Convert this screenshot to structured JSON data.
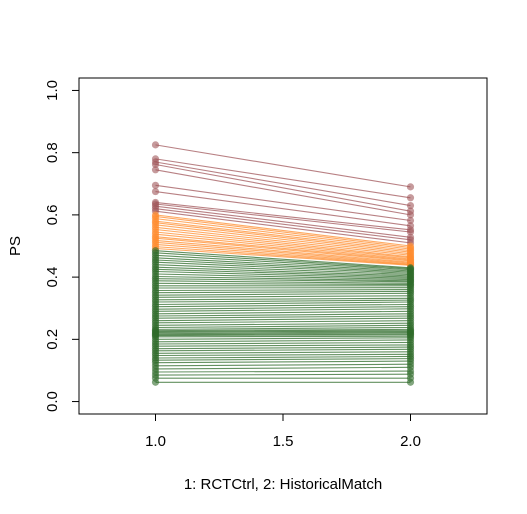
{
  "chart_data": {
    "type": "line",
    "title": "",
    "xlabel": "1: RCTCtrl, 2: HistoricalMatch",
    "ylabel": "PS",
    "xlim": [
      0.7,
      2.3
    ],
    "ylim": [
      -0.04,
      1.04
    ],
    "x_ticks": [
      "1.0",
      "1.5",
      "2.0"
    ],
    "y_ticks": [
      "0.0",
      "0.2",
      "0.4",
      "0.6",
      "0.8",
      "1.0"
    ],
    "x_tick_values": [
      1.0,
      1.5,
      2.0
    ],
    "y_tick_values": [
      0.0,
      0.2,
      0.4,
      0.6,
      0.8,
      1.0
    ],
    "grid": false,
    "legend": "none",
    "x": [
      1,
      2
    ],
    "groups": [
      {
        "color": "#a0565a",
        "pairs": [
          [
            0.825,
            0.69
          ],
          [
            0.78,
            0.655
          ],
          [
            0.77,
            0.63
          ],
          [
            0.762,
            0.612
          ],
          [
            0.745,
            0.6
          ],
          [
            0.695,
            0.582
          ],
          [
            0.675,
            0.565
          ],
          [
            0.64,
            0.552
          ],
          [
            0.635,
            0.545
          ],
          [
            0.628,
            0.528
          ],
          [
            0.62,
            0.52
          ],
          [
            0.612,
            0.51
          ]
        ]
      },
      {
        "color": "#ff8c2e",
        "pairs": [
          [
            0.6,
            0.5
          ],
          [
            0.595,
            0.495
          ],
          [
            0.588,
            0.49
          ],
          [
            0.58,
            0.485
          ],
          [
            0.575,
            0.48
          ],
          [
            0.568,
            0.475
          ],
          [
            0.56,
            0.47
          ],
          [
            0.553,
            0.465
          ],
          [
            0.545,
            0.462
          ],
          [
            0.538,
            0.458
          ],
          [
            0.53,
            0.455
          ],
          [
            0.525,
            0.452
          ],
          [
            0.518,
            0.448
          ],
          [
            0.512,
            0.445
          ],
          [
            0.505,
            0.442
          ],
          [
            0.498,
            0.44
          ],
          [
            0.492,
            0.438
          ]
        ]
      },
      {
        "color": "#2e6b2a",
        "pairs": [
          [
            0.485,
            0.43
          ],
          [
            0.478,
            0.427
          ],
          [
            0.47,
            0.424
          ],
          [
            0.462,
            0.42
          ],
          [
            0.455,
            0.416
          ],
          [
            0.448,
            0.412
          ],
          [
            0.44,
            0.408
          ],
          [
            0.432,
            0.404
          ],
          [
            0.425,
            0.4
          ],
          [
            0.418,
            0.396
          ],
          [
            0.41,
            0.392
          ],
          [
            0.402,
            0.388
          ],
          [
            0.395,
            0.385
          ],
          [
            0.388,
            0.38
          ],
          [
            0.38,
            0.376
          ],
          [
            0.372,
            0.372
          ],
          [
            0.365,
            0.366
          ],
          [
            0.357,
            0.36
          ],
          [
            0.35,
            0.354
          ],
          [
            0.342,
            0.348
          ],
          [
            0.335,
            0.34
          ],
          [
            0.327,
            0.332
          ],
          [
            0.32,
            0.326
          ],
          [
            0.312,
            0.32
          ],
          [
            0.305,
            0.312
          ],
          [
            0.297,
            0.305
          ],
          [
            0.29,
            0.298
          ],
          [
            0.282,
            0.29
          ],
          [
            0.275,
            0.282
          ],
          [
            0.268,
            0.275
          ],
          [
            0.26,
            0.268
          ],
          [
            0.253,
            0.26
          ],
          [
            0.245,
            0.252
          ],
          [
            0.238,
            0.245
          ],
          [
            0.232,
            0.238
          ],
          [
            0.228,
            0.232
          ],
          [
            0.225,
            0.228
          ],
          [
            0.222,
            0.225
          ],
          [
            0.218,
            0.222
          ],
          [
            0.215,
            0.218
          ],
          [
            0.212,
            0.215
          ],
          [
            0.208,
            0.21
          ],
          [
            0.2,
            0.205
          ],
          [
            0.192,
            0.198
          ],
          [
            0.185,
            0.19
          ],
          [
            0.178,
            0.182
          ],
          [
            0.17,
            0.175
          ],
          [
            0.163,
            0.168
          ],
          [
            0.155,
            0.16
          ],
          [
            0.148,
            0.152
          ],
          [
            0.14,
            0.145
          ],
          [
            0.133,
            0.138
          ],
          [
            0.125,
            0.13
          ],
          [
            0.115,
            0.12
          ],
          [
            0.105,
            0.11
          ],
          [
            0.095,
            0.098
          ],
          [
            0.085,
            0.088
          ],
          [
            0.075,
            0.075
          ],
          [
            0.062,
            0.062
          ]
        ]
      }
    ]
  }
}
